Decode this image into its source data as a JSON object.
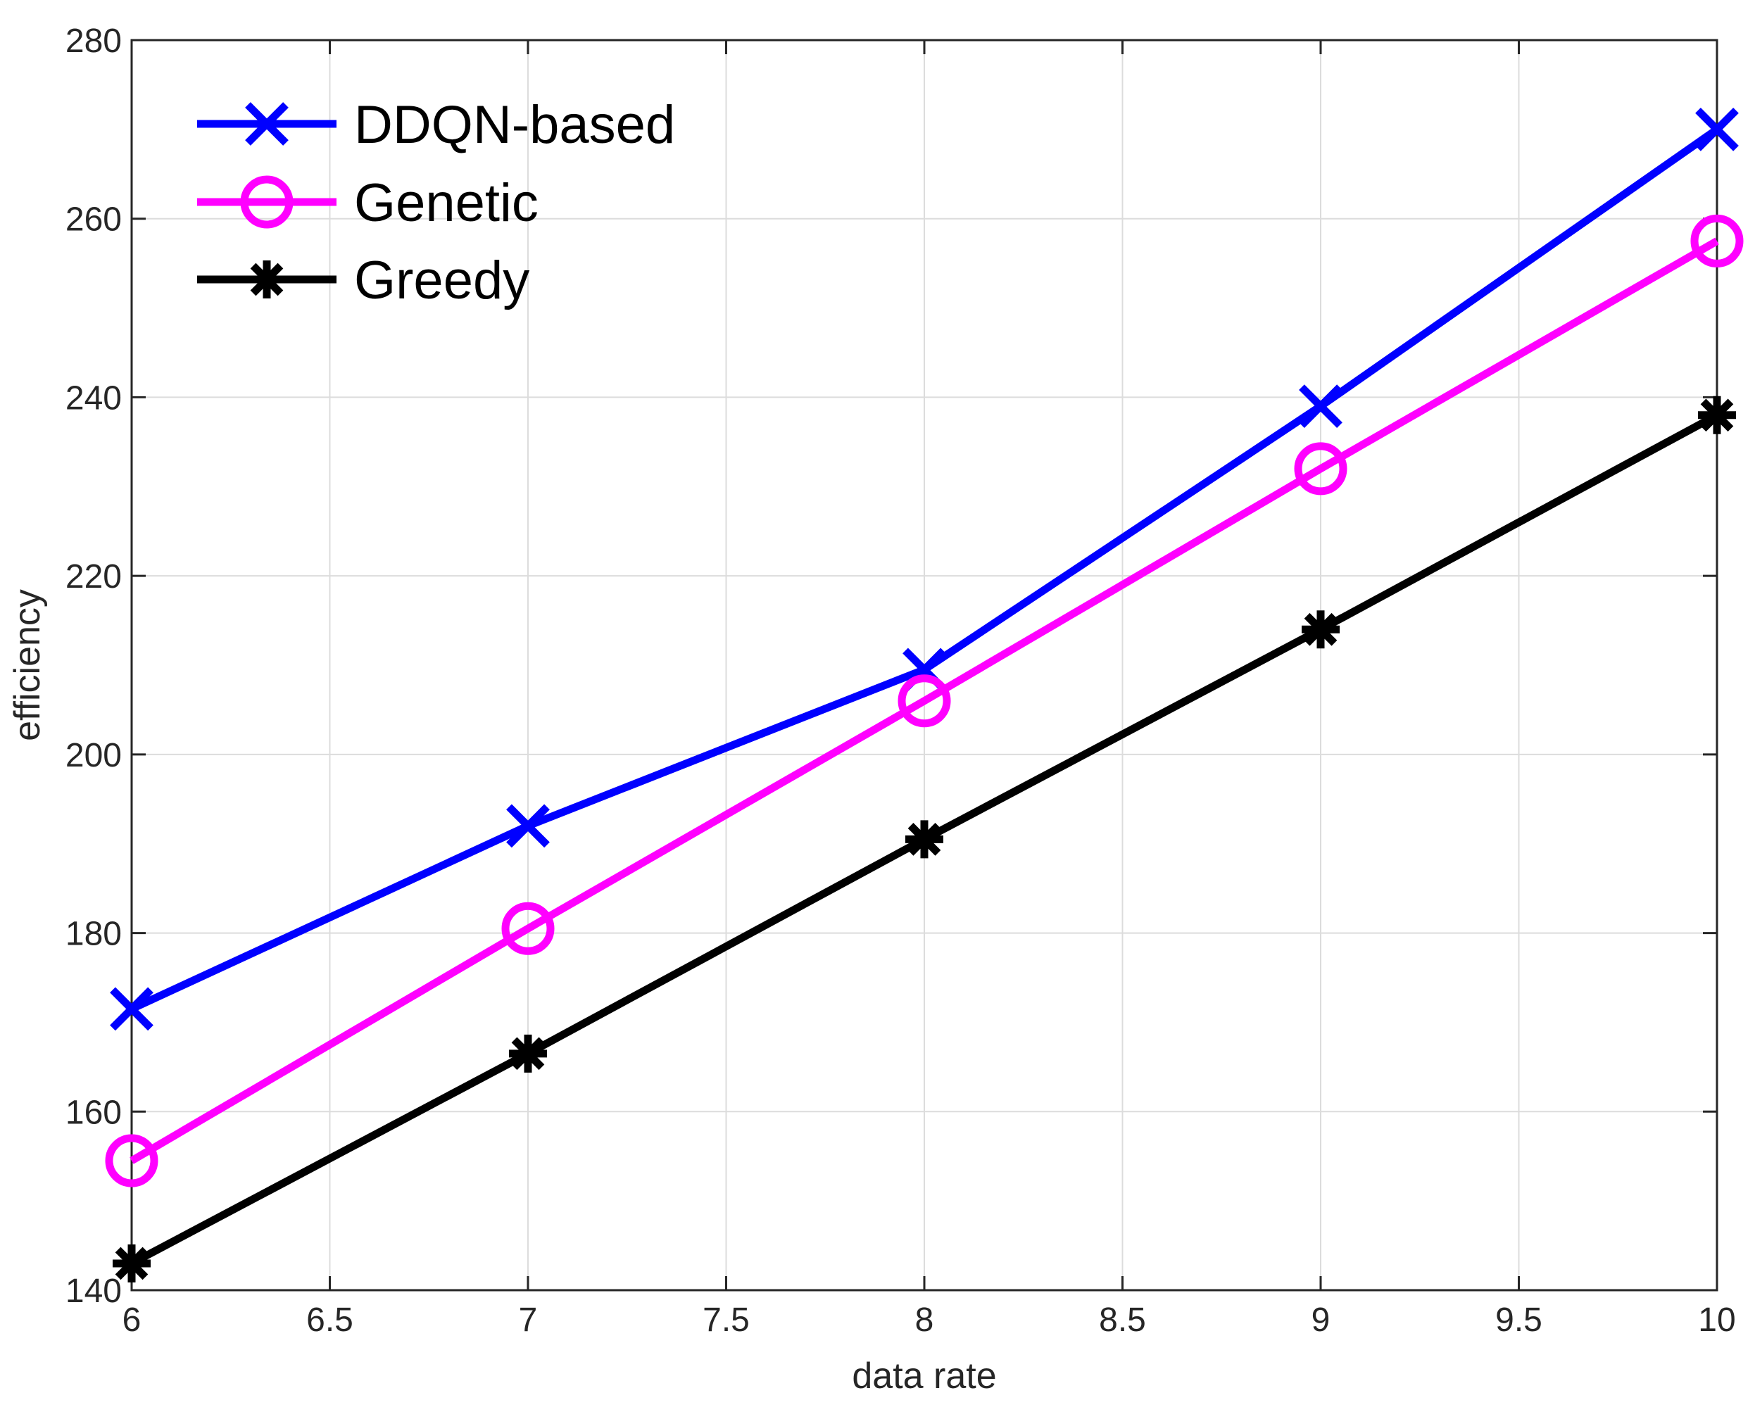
{
  "chart_data": {
    "type": "line",
    "title": "",
    "xlabel": "data rate",
    "ylabel": "efficiency",
    "xlim": [
      6,
      10
    ],
    "ylim": [
      140,
      280
    ],
    "xticks": [
      6,
      6.5,
      7,
      7.5,
      8,
      8.5,
      9,
      9.5,
      10
    ],
    "xtick_labels": [
      "6",
      "6.5",
      "7",
      "7.5",
      "8",
      "8.5",
      "9",
      "9.5",
      "10"
    ],
    "yticks": [
      140,
      160,
      180,
      200,
      220,
      240,
      260,
      280
    ],
    "ytick_labels": [
      "140",
      "160",
      "180",
      "200",
      "220",
      "240",
      "260",
      "280"
    ],
    "grid": true,
    "legend_position": "top-left",
    "x": [
      6,
      7,
      8,
      9,
      10
    ],
    "series": [
      {
        "name": "DDQN-based",
        "color": "#0000FF",
        "marker": "x",
        "values": [
          171.5,
          192,
          209.5,
          239,
          270
        ]
      },
      {
        "name": "Genetic",
        "color": "#FF00FF",
        "marker": "o",
        "values": [
          154.5,
          180.5,
          206,
          232,
          257.5
        ]
      },
      {
        "name": "Greedy",
        "color": "#000000",
        "marker": "*",
        "values": [
          143,
          166.5,
          190.5,
          214,
          238
        ]
      }
    ]
  }
}
